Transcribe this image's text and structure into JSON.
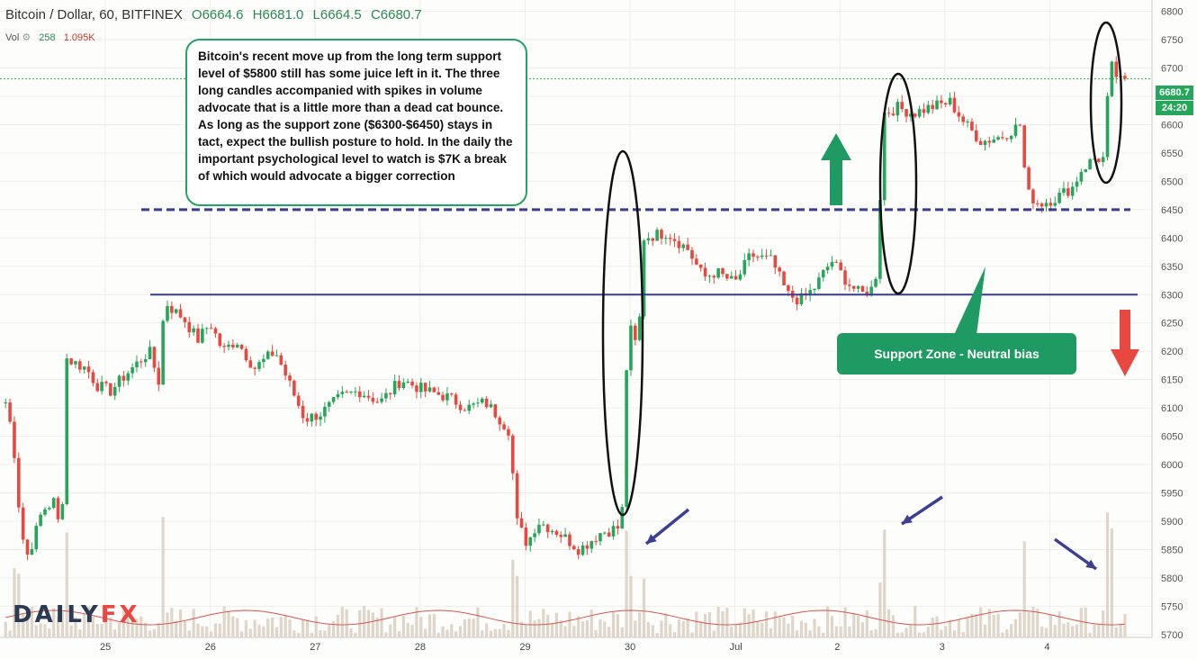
{
  "header": {
    "symbol": "Bitcoin / Dollar, 60, BITFINEX",
    "open": "O6664.6",
    "high": "H6681.0",
    "low": "L6664.5",
    "close": "C6680.7",
    "vol_label": "Vol",
    "vol_value": "258",
    "vol_ma": "1.095K"
  },
  "annotation_text": "Bitcoin's recent move up from the long term support level of $5800 still has some juice left in it. The three long candles accompanied with spikes in volume advocate that is a little more than a dead cat bounce. As long as the support zone ($6300-$6450) stays in tact, expect the bullish posture to hold. In the daily the important psychological level to watch is $7K a break of which would advocate a bigger correction",
  "support_label": "Support  Zone - Neutral bias",
  "price_tags": {
    "last": "6680.7",
    "countdown": "24:20"
  },
  "logo": {
    "part1": "DAILY",
    "part2": "FX"
  },
  "colors": {
    "up": "#26a65b",
    "down": "#e8483f",
    "accent_green": "#1f9a63",
    "line_blue": "#3a3d8f",
    "arrow_blue": "#3d3f92",
    "volume": "#d9cfc0"
  },
  "chart_data": {
    "type": "candlestick",
    "title": "Bitcoin / Dollar, 60, BITFINEX",
    "y_ticks": [
      5700,
      5750,
      5800,
      5850,
      5900,
      5950,
      6000,
      6050,
      6100,
      6150,
      6200,
      6250,
      6300,
      6350,
      6400,
      6450,
      6500,
      6550,
      6600,
      6650,
      6700,
      6750,
      6800
    ],
    "ylim": [
      5695,
      6820
    ],
    "x_ticks": [
      {
        "label": "25",
        "day": 0
      },
      {
        "label": "26",
        "day": 1
      },
      {
        "label": "27",
        "day": 2
      },
      {
        "label": "28",
        "day": 3
      },
      {
        "label": "29",
        "day": 4
      },
      {
        "label": "30",
        "day": 5
      },
      {
        "label": "Jul",
        "day": 6
      },
      {
        "label": "2",
        "day": 7
      },
      {
        "label": "3",
        "day": 8
      },
      {
        "label": "4",
        "day": 9
      }
    ],
    "keypoints": [
      [
        -0.95,
        6110
      ],
      [
        -0.88,
        6050
      ],
      [
        -0.84,
        5960
      ],
      [
        -0.8,
        5880
      ],
      [
        -0.74,
        5840
      ],
      [
        -0.68,
        5870
      ],
      [
        -0.6,
        5920
      ],
      [
        -0.52,
        5930
      ],
      [
        -0.46,
        5940
      ],
      [
        -0.42,
        5780
      ],
      [
        -0.39,
        6190
      ],
      [
        -0.3,
        6180
      ],
      [
        -0.18,
        6170
      ],
      [
        -0.08,
        6140
      ],
      [
        0.05,
        6130
      ],
      [
        0.2,
        6160
      ],
      [
        0.42,
        6200
      ],
      [
        0.52,
        6140
      ],
      [
        0.56,
        6290
      ],
      [
        0.66,
        6270
      ],
      [
        0.74,
        6260
      ],
      [
        0.88,
        6220
      ],
      [
        1.0,
        6250
      ],
      [
        1.12,
        6200
      ],
      [
        1.25,
        6220
      ],
      [
        1.42,
        6170
      ],
      [
        1.62,
        6200
      ],
      [
        1.9,
        6080
      ],
      [
        2.05,
        6090
      ],
      [
        2.25,
        6120
      ],
      [
        2.42,
        6130
      ],
      [
        2.62,
        6110
      ],
      [
        2.82,
        6150
      ],
      [
        3.05,
        6130
      ],
      [
        3.25,
        6120
      ],
      [
        3.45,
        6100
      ],
      [
        3.62,
        6110
      ],
      [
        3.72,
        6090
      ],
      [
        3.85,
        6060
      ],
      [
        3.92,
        5900
      ],
      [
        4.02,
        5860
      ],
      [
        4.12,
        5900
      ],
      [
        4.32,
        5880
      ],
      [
        4.52,
        5850
      ],
      [
        4.72,
        5880
      ],
      [
        4.92,
        5890
      ],
      [
        4.98,
        6250
      ],
      [
        5.08,
        6200
      ],
      [
        5.12,
        6400
      ],
      [
        5.35,
        6410
      ],
      [
        5.55,
        6380
      ],
      [
        5.7,
        6330
      ],
      [
        5.82,
        6340
      ],
      [
        6.0,
        6320
      ],
      [
        6.15,
        6370
      ],
      [
        6.35,
        6360
      ],
      [
        6.5,
        6300
      ],
      [
        6.62,
        6290
      ],
      [
        6.75,
        6310
      ],
      [
        6.92,
        6360
      ],
      [
        7.08,
        6320
      ],
      [
        7.2,
        6300
      ],
      [
        7.3,
        6310
      ],
      [
        7.35,
        6340
      ],
      [
        7.42,
        6620
      ],
      [
        7.55,
        6630
      ],
      [
        7.7,
        6620
      ],
      [
        7.85,
        6630
      ],
      [
        8.05,
        6640
      ],
      [
        8.2,
        6600
      ],
      [
        8.35,
        6570
      ],
      [
        8.55,
        6580
      ],
      [
        8.72,
        6600
      ],
      [
        8.78,
        6480
      ],
      [
        8.9,
        6460
      ],
      [
        9.05,
        6470
      ],
      [
        9.22,
        6490
      ],
      [
        9.3,
        6520
      ],
      [
        9.42,
        6540
      ],
      [
        9.52,
        6540
      ],
      [
        9.57,
        6710
      ],
      [
        9.62,
        6690
      ],
      [
        9.7,
        6670
      ],
      [
        9.74,
        6681
      ]
    ],
    "volume_scale": [
      0,
      1
    ]
  }
}
